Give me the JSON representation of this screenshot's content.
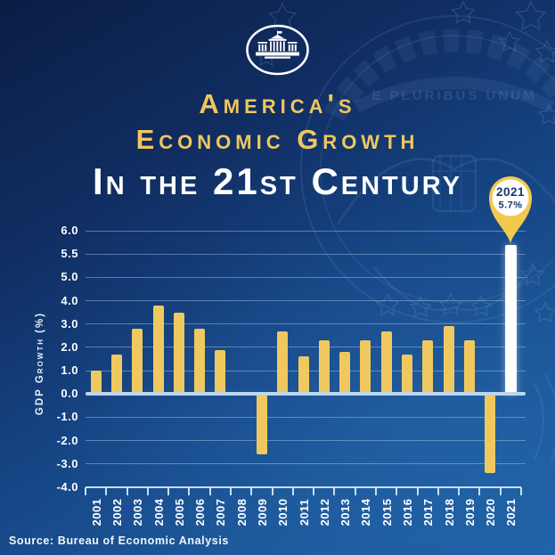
{
  "colors": {
    "background_top": "#0A1E45",
    "background_bottom": "#1E62A8",
    "accent_gold": "#F0C75E",
    "bar_gold": "#EFC95F",
    "highlight_white": "#FFFFFF",
    "gridline_blue": "#BCD7F0",
    "pin_text_navy": "#123A6E"
  },
  "icons": {
    "logo": "white-house-logo",
    "watermark": "presidential-seal-watermark",
    "callout": "map-pin-icon"
  },
  "header": {
    "title_line1": "America's",
    "title_line2": "Economic Growth",
    "title_line3": "In the 21st Century"
  },
  "callout": {
    "year": "2021",
    "value": "5.7%"
  },
  "chart_data": {
    "type": "bar",
    "title": "America's Economic Growth In the 21st Century",
    "xlabel": "",
    "ylabel": "GDP Growth (%)",
    "categories": [
      "2001",
      "2002",
      "2003",
      "2004",
      "2005",
      "2006",
      "2007",
      "2008",
      "2009",
      "2010",
      "2011",
      "2012",
      "2013",
      "2014",
      "2015",
      "2016",
      "2017",
      "2018",
      "2019",
      "2020",
      "2021"
    ],
    "values": [
      1.0,
      1.7,
      2.8,
      3.8,
      3.5,
      2.8,
      1.9,
      0.1,
      -2.6,
      2.7,
      1.6,
      2.3,
      1.8,
      2.3,
      2.7,
      1.7,
      2.3,
      2.9,
      2.3,
      -3.4,
      5.7
    ],
    "ytick_labels": [
      "6.0",
      "5.5",
      "5.0",
      "4.0",
      "3.0",
      "2.0",
      "1.0",
      "0.0",
      "-1.0",
      "-2.0",
      "-3.0",
      "-4.0"
    ],
    "ytick_values": [
      6.0,
      5.5,
      5.0,
      4.0,
      3.0,
      2.0,
      1.0,
      0.0,
      -1.0,
      -2.0,
      -3.0,
      -4.0
    ],
    "bar_color": "#EFC95F",
    "highlight_category": "2021",
    "highlight_color": "#FFFFFF",
    "grid": true,
    "legend": false
  },
  "source": {
    "label": "Source: Bureau of Economic Analysis"
  }
}
